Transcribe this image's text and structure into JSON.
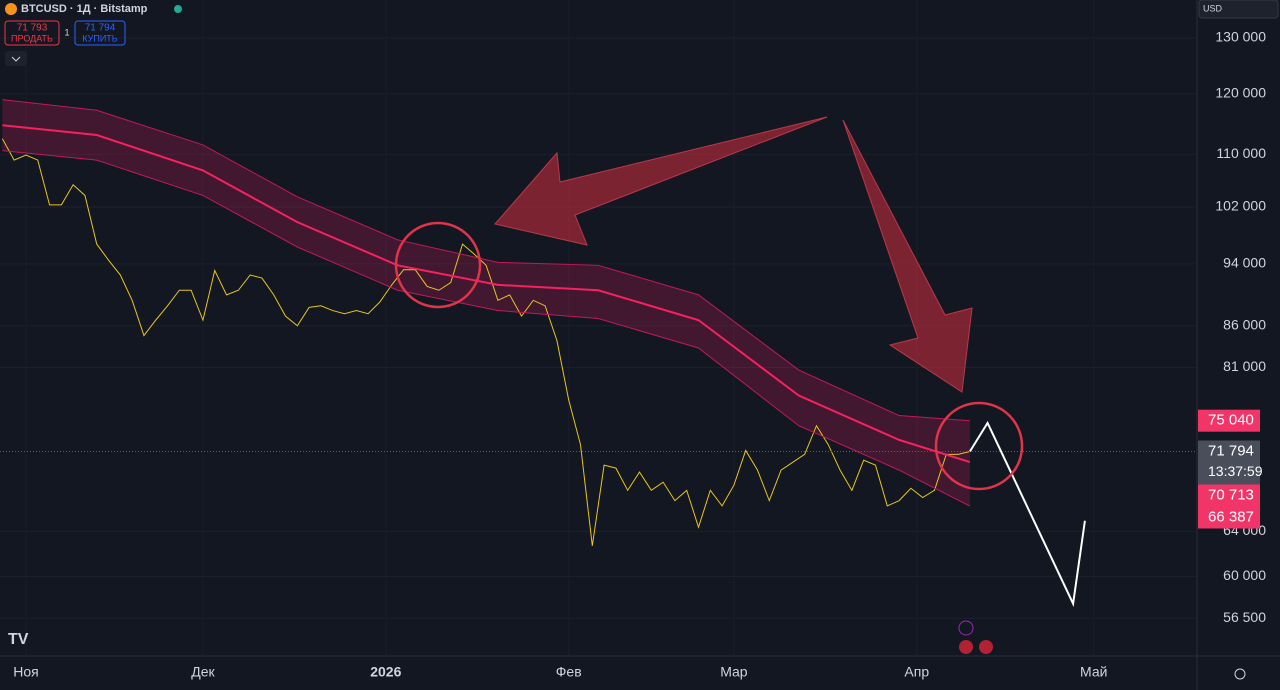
{
  "header": {
    "symbol": "BTCUSD · 1Д · Bitstamp",
    "sell_price": "71 793",
    "sell_label": "ПРОДАТЬ",
    "spread": "1",
    "buy_price": "71 794",
    "buy_label": "КУПИТЬ",
    "currency": "USD"
  },
  "chart_data": {
    "type": "line",
    "log_scale": true,
    "xlim": [
      -4.4,
      198.5
    ],
    "xticks": [
      {
        "value": 0,
        "label": "Ноя"
      },
      {
        "value": 30,
        "label": "Дек"
      },
      {
        "value": 61,
        "label": "2026"
      },
      {
        "value": 92,
        "label": "Фев"
      },
      {
        "value": 120,
        "label": "Мар"
      },
      {
        "value": 151,
        "label": "Апр"
      },
      {
        "value": 181,
        "label": "Май"
      }
    ],
    "ylim": [
      53600,
      137300
    ],
    "yticks": [
      {
        "value": 130000,
        "label": "130 000"
      },
      {
        "value": 120000,
        "label": "120 000"
      },
      {
        "value": 110000,
        "label": "110 000"
      },
      {
        "value": 102000,
        "label": "102 000"
      },
      {
        "value": 94000,
        "label": "94 000"
      },
      {
        "value": 86000,
        "label": "86 000"
      },
      {
        "value": 81000,
        "label": "81 000"
      },
      {
        "value": 64000,
        "label": "64 000"
      },
      {
        "value": 60000,
        "label": "60 000"
      },
      {
        "value": 56500,
        "label": "56 500"
      }
    ],
    "series": [
      {
        "color": "#e8c51a",
        "width": 1,
        "x": [
          -4,
          -2,
          0,
          2,
          4,
          6,
          8,
          10,
          12,
          14,
          16,
          18,
          20,
          22,
          24,
          26,
          28,
          30,
          32,
          34,
          36,
          38,
          40,
          42,
          44,
          46,
          48,
          50,
          52,
          54,
          56,
          58,
          60,
          62,
          64,
          66,
          68,
          70,
          72,
          74,
          76,
          78,
          80,
          82,
          84,
          86,
          88,
          90,
          92,
          94,
          96,
          98,
          100,
          102,
          104,
          106,
          108,
          110,
          112,
          114,
          116,
          118,
          120,
          122,
          124,
          126,
          128,
          130,
          132,
          134,
          136,
          138,
          140,
          142,
          144,
          146,
          148,
          150,
          152,
          154,
          156,
          158,
          160
        ],
        "values": [
          112500,
          109100,
          109900,
          109100,
          102300,
          102300,
          105300,
          103700,
          96700,
          94500,
          92500,
          89200,
          84800,
          86700,
          88500,
          90500,
          90500,
          86700,
          93100,
          89900,
          90500,
          92500,
          92100,
          89900,
          87200,
          86000,
          88300,
          88500,
          87900,
          87500,
          87900,
          87500,
          89000,
          91200,
          93200,
          93200,
          91000,
          90500,
          91500,
          96700,
          95300,
          93800,
          89200,
          89900,
          87200,
          89200,
          88500,
          84200,
          77300,
          72500,
          62700,
          70400,
          70100,
          67900,
          69700,
          67900,
          68700,
          66900,
          67900,
          64400,
          67900,
          66400,
          68400,
          71900,
          69900,
          66900,
          69900,
          70700,
          71500,
          74500,
          72500,
          69900,
          67900,
          70900,
          70400,
          66400,
          66900,
          68100,
          67200,
          67900,
          71500,
          71500,
          71794
        ]
      },
      {
        "color": "#c2185b",
        "width": 1,
        "x": [
          -4,
          12,
          30,
          46,
          63,
          80,
          97,
          114,
          131,
          148,
          160
        ],
        "values": [
          119000,
          117200,
          111500,
          103500,
          97300,
          94200,
          93800,
          89900,
          80700,
          75600,
          75040
        ]
      },
      {
        "color": "#f7215f",
        "width": 2,
        "x": [
          -4,
          12,
          30,
          46,
          63,
          80,
          97,
          114,
          131,
          148,
          160
        ],
        "values": [
          114700,
          113100,
          107500,
          99800,
          93800,
          91200,
          90500,
          86700,
          77800,
          73000,
          70713
        ]
      },
      {
        "color": "#c2185b",
        "width": 1,
        "x": [
          -4,
          12,
          30,
          46,
          63,
          80,
          97,
          114,
          131,
          148,
          160
        ],
        "values": [
          110600,
          109100,
          103700,
          96300,
          90500,
          87900,
          86900,
          83300,
          74500,
          69900,
          66387
        ]
      },
      {
        "color": "#ffffff",
        "width": 2,
        "x": [
          160,
          163,
          177.5,
          179.5
        ],
        "values": [
          71794,
          74800,
          57700,
          65000
        ]
      }
    ],
    "band_color": "rgba(233,30,99,0.22)",
    "price_labels": [
      {
        "value": 75040,
        "label": "75 040",
        "color": "#f23568"
      },
      {
        "value": 71794,
        "label": "71 794",
        "countdown": "13:37:59",
        "color": "#4a4e5a"
      },
      {
        "value": 70713,
        "label": "70 713",
        "color": "#f23568"
      },
      {
        "value": 66387,
        "label": "66 387",
        "color": "#f23568"
      }
    ]
  }
}
